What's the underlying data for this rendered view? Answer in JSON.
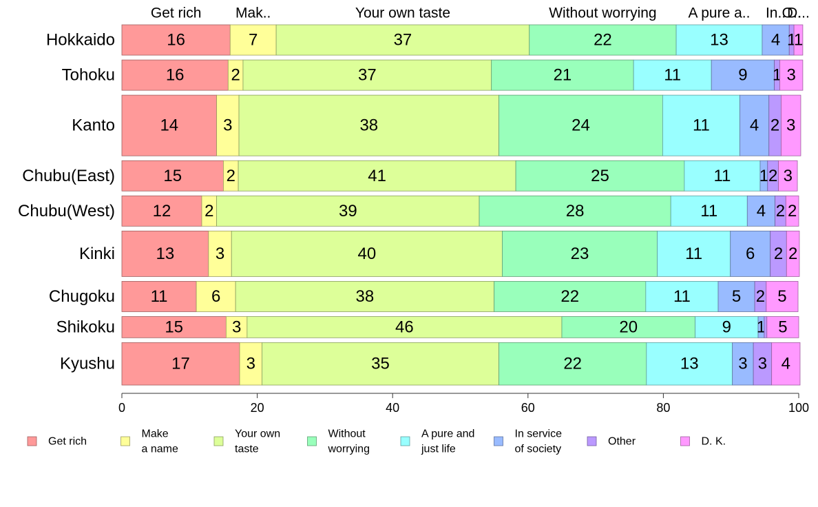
{
  "chart_data": {
    "type": "bar",
    "orientation": "horizontal",
    "stacked": true,
    "normalized_percent": true,
    "categories": [
      "Hokkaido",
      "Tohoku",
      "Kanto",
      "Chubu(East)",
      "Chubu(West)",
      "Kinki",
      "Chugoku",
      "Shikoku",
      "Kyushu"
    ],
    "category_weights": [
      1,
      1,
      2,
      1,
      1,
      1.5,
      1,
      0.7,
      1.4
    ],
    "top_labels": [
      "Get rich",
      "Mak..",
      "Your own taste",
      "Without worrying",
      "A pure a..",
      "In..",
      "O..",
      "D..."
    ],
    "series": [
      {
        "name": "Get rich",
        "legend": [
          "Get rich"
        ],
        "color": "#ff9999",
        "values": [
          16,
          15.7,
          14,
          15,
          11.8,
          12.8,
          11,
          15.4,
          17.4
        ]
      },
      {
        "name": "Make a name",
        "legend": [
          "Make",
          "a name"
        ],
        "color": "#ffff99",
        "values": [
          6.8,
          2.2,
          3.3,
          2.2,
          2.2,
          3.4,
          5.8,
          3.1,
          3.3
        ]
      },
      {
        "name": "Your own taste",
        "legend": [
          "Your own",
          "taste"
        ],
        "color": "#ddff99",
        "values": [
          37.4,
          36.7,
          38.4,
          41,
          38.8,
          40,
          38.2,
          46.5,
          35
        ]
      },
      {
        "name": "Without worrying",
        "legend": [
          "Without",
          "worrying"
        ],
        "color": "#99ffbb",
        "values": [
          21.7,
          21,
          24.2,
          24.9,
          28.3,
          22.9,
          22.4,
          19.7,
          21.8
        ]
      },
      {
        "name": "A pure and just life",
        "legend": [
          "A pure and",
          "just life"
        ],
        "color": "#99ffff",
        "values": [
          12.7,
          11.5,
          11.4,
          11.2,
          11.3,
          10.8,
          10.7,
          9.3,
          12.7
        ]
      },
      {
        "name": "In service of society",
        "legend": [
          "In service",
          "of society"
        ],
        "color": "#99bbff",
        "values": [
          4,
          9.3,
          4.3,
          1.1,
          4.1,
          5.9,
          5.4,
          0.9,
          3.1
        ]
      },
      {
        "name": "Other",
        "legend": [
          "Other"
        ],
        "color": "#bb99ff",
        "values": [
          0.7,
          0.8,
          1.8,
          1.6,
          1.6,
          2.4,
          1.7,
          0.4,
          2.7
        ]
      },
      {
        "name": "D. K.",
        "legend": [
          "D. K."
        ],
        "color": "#ff99ff",
        "values": [
          1.3,
          3.4,
          2.9,
          2.8,
          1.9,
          1.9,
          4.7,
          4.7,
          4.2
        ]
      }
    ],
    "data_labels": [
      [
        "16",
        "7",
        "37",
        "22",
        "13",
        "4",
        "1",
        "1"
      ],
      [
        "16",
        "2",
        "37",
        "21",
        "11",
        "9",
        "1",
        "3"
      ],
      [
        "14",
        "3",
        "38",
        "24",
        "11",
        "4",
        "2",
        "3"
      ],
      [
        "15",
        "2",
        "41",
        "25",
        "11",
        "1",
        "2",
        "3"
      ],
      [
        "12",
        "2",
        "39",
        "28",
        "11",
        "4",
        "2",
        "2"
      ],
      [
        "13",
        "3",
        "40",
        "23",
        "11",
        "6",
        "2",
        "2"
      ],
      [
        "11",
        "6",
        "38",
        "22",
        "11",
        "5",
        "2",
        "5"
      ],
      [
        "15",
        "3",
        "46",
        "20",
        "9",
        "1",
        "",
        "5"
      ],
      [
        "17",
        "3",
        "35",
        "22",
        "13",
        "3",
        "3",
        "4"
      ]
    ],
    "xlim": [
      0,
      100
    ],
    "xticks": [
      0,
      20,
      40,
      60,
      80,
      100
    ],
    "xlabel": "",
    "ylabel": "",
    "grid": false,
    "legend_position": "bottom"
  }
}
